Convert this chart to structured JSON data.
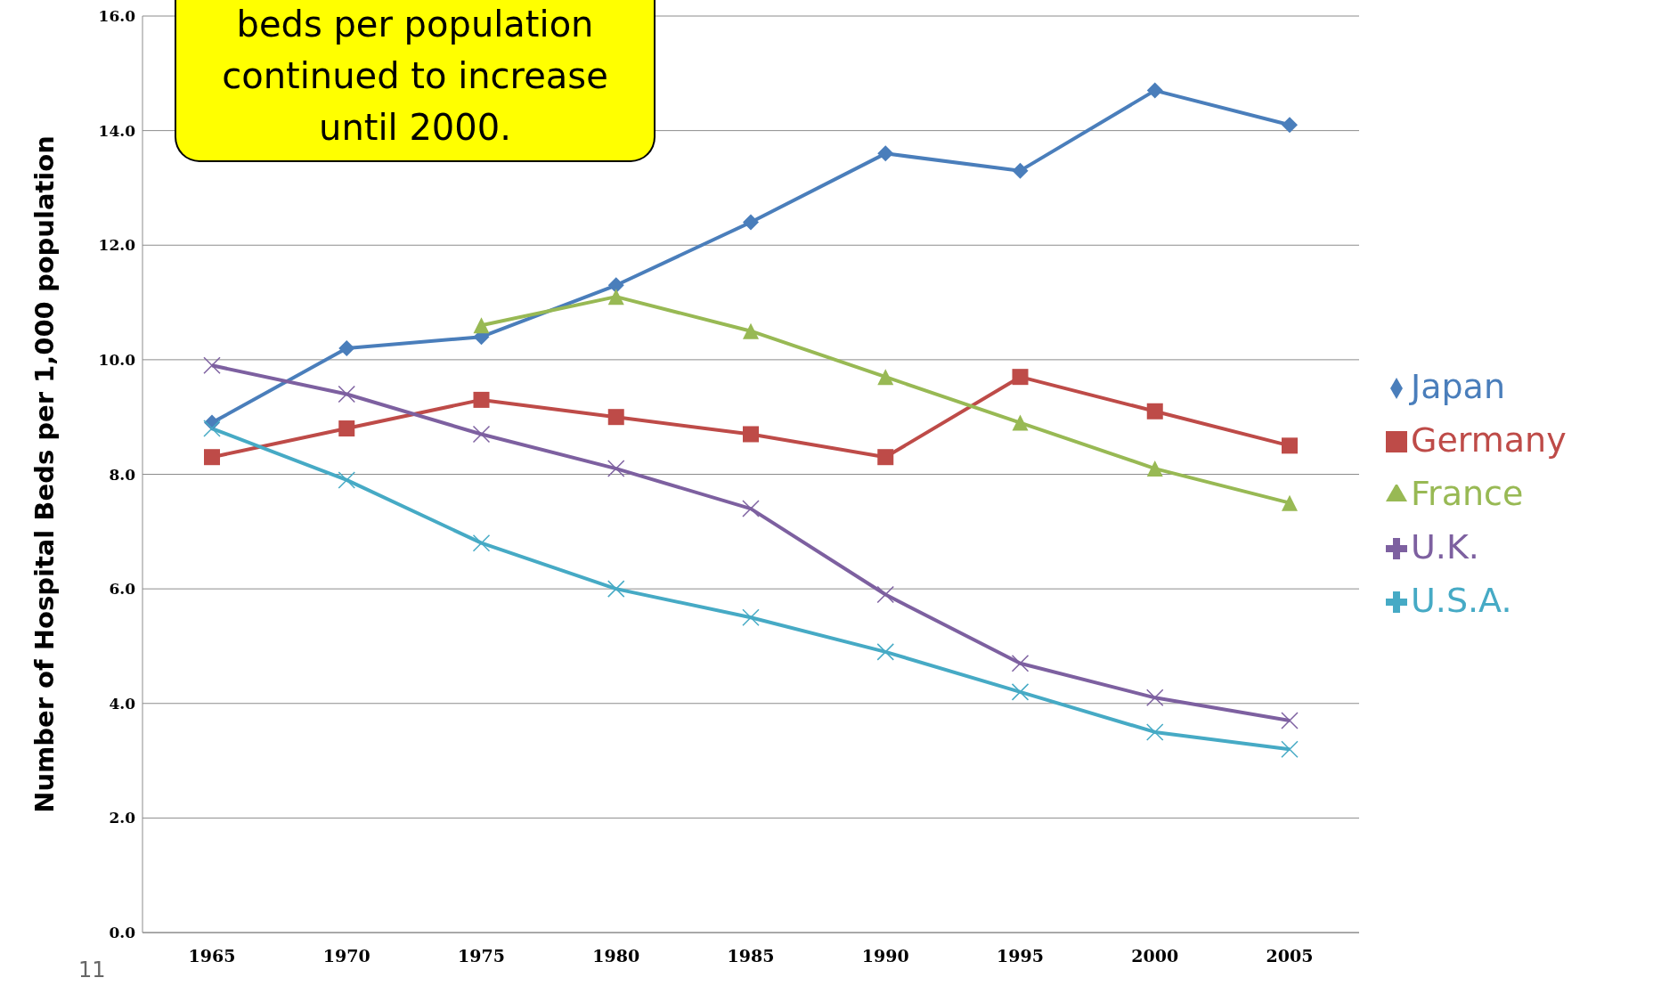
{
  "chart_data": {
    "type": "line",
    "ylabel": "Number of Hospital Beds per 1,000 population",
    "categories": [
      "1965",
      "1970",
      "1975",
      "1980",
      "1985",
      "1990",
      "1995",
      "2000",
      "2005"
    ],
    "series": [
      {
        "name": "Japan",
        "color": "#4a7ebb",
        "marker": "diamond",
        "values": [
          8.9,
          10.2,
          10.4,
          11.3,
          12.4,
          13.6,
          13.3,
          14.7,
          14.1
        ]
      },
      {
        "name": "Germany",
        "color": "#be4b48",
        "marker": "square",
        "values": [
          8.3,
          8.8,
          9.3,
          9.0,
          8.7,
          8.3,
          9.7,
          9.1,
          8.5
        ]
      },
      {
        "name": "France",
        "color": "#98b954",
        "marker": "triangle",
        "values": [
          null,
          null,
          10.6,
          11.1,
          10.5,
          9.7,
          8.9,
          8.1,
          7.5
        ]
      },
      {
        "name": "U.K.",
        "color": "#7d60a0",
        "marker": "cross",
        "values": [
          9.9,
          9.4,
          8.7,
          8.1,
          7.4,
          5.9,
          4.7,
          4.1,
          3.7
        ]
      },
      {
        "name": "U.S.A.",
        "color": "#46aac5",
        "marker": "cross",
        "values": [
          8.8,
          7.9,
          6.8,
          6.0,
          5.5,
          4.9,
          4.2,
          3.5,
          3.2
        ]
      }
    ],
    "ylim": [
      0,
      16
    ],
    "yticks": [
      {
        "value": 0,
        "label": "0.0"
      },
      {
        "value": 2,
        "label": "2.0"
      },
      {
        "value": 4,
        "label": "4.0"
      },
      {
        "value": 6,
        "label": "6.0"
      },
      {
        "value": 8,
        "label": "8.0"
      },
      {
        "value": 10,
        "label": "10.0"
      },
      {
        "value": 12,
        "label": "12.0"
      },
      {
        "value": 14,
        "label": "14.0"
      },
      {
        "value": 16,
        "label": "16.0"
      }
    ],
    "grid": "y",
    "legend": "right",
    "line_style": "solid",
    "annotations": [
      "beds per population continued to increase until 2000.",
      "11"
    ]
  }
}
